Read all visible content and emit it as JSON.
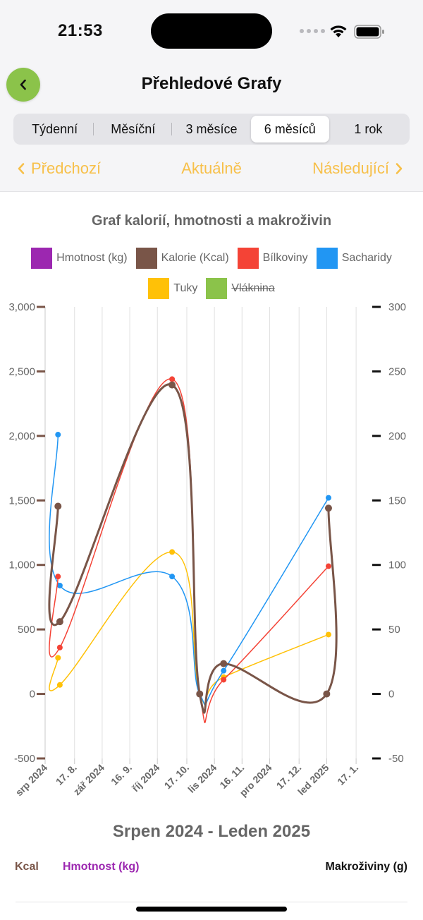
{
  "status_bar": {
    "time": "21:53"
  },
  "header": {
    "title": "Přehledové Grafy"
  },
  "tabs": [
    {
      "label": "Týdenní",
      "active": false
    },
    {
      "label": "Měsíční",
      "active": false
    },
    {
      "label": "3 měsíce",
      "active": false
    },
    {
      "label": "6 měsíců",
      "active": true
    },
    {
      "label": "1 rok",
      "active": false
    }
  ],
  "period_nav": {
    "prev": "Předchozí",
    "current": "Aktuálně",
    "next": "Následující"
  },
  "colors": {
    "accent_green": "#8bc34a",
    "accent_yellow": "#f7c04a",
    "weight": "#9c27b0",
    "kcal": "#795548",
    "protein": "#f44336",
    "carbs": "#2196f3",
    "fat": "#ffc107",
    "fiber": "#8bc34a"
  },
  "chart_data": {
    "type": "line",
    "title": "Graf kalorií, hmotnosti a makroživin",
    "legend_placement": "top",
    "grid": true,
    "x_type": "date",
    "xlim": [
      "2024-08-01",
      "2025-01-25"
    ],
    "x_tick_labels": [
      {
        "date": "2024-08-01",
        "label": "srp 2024"
      },
      {
        "date": "2024-08-17",
        "label": "17. 8."
      },
      {
        "date": "2024-09-01",
        "label": "zář 2024"
      },
      {
        "date": "2024-09-16",
        "label": "16. 9."
      },
      {
        "date": "2024-10-01",
        "label": "říj 2024"
      },
      {
        "date": "2024-10-17",
        "label": "17. 10."
      },
      {
        "date": "2024-11-01",
        "label": "lis 2024"
      },
      {
        "date": "2024-11-16",
        "label": "16. 11."
      },
      {
        "date": "2024-12-01",
        "label": "pro 2024"
      },
      {
        "date": "2024-12-17",
        "label": "17. 12."
      },
      {
        "date": "2025-01-01",
        "label": "led 2025"
      },
      {
        "date": "2025-01-17",
        "label": "17. 1."
      }
    ],
    "y_left": {
      "ylim": [
        -500,
        3000
      ],
      "ticks": [
        "-500",
        "0",
        "500",
        "1,000",
        "1,500",
        "2,000",
        "2,500",
        "3,000"
      ]
    },
    "y_right": {
      "ylim": [
        -50,
        300
      ],
      "ticks": [
        "-50",
        "0",
        "50",
        "100",
        "150",
        "200",
        "250",
        "300"
      ]
    },
    "series": [
      {
        "name": "Hmotnost (kg)",
        "axis": "left",
        "visible": true,
        "points": []
      },
      {
        "name": "Kalorie (Kcal)",
        "axis": "left",
        "visible": true,
        "points": [
          [
            "2024-08-08",
            1455
          ],
          [
            "2024-08-09",
            560
          ],
          [
            "2024-10-09",
            2395
          ],
          [
            "2024-10-24",
            0
          ],
          [
            "2024-11-06",
            235
          ],
          [
            "2025-01-01",
            0
          ],
          [
            "2025-01-02",
            1440
          ]
        ]
      },
      {
        "name": "Bílkoviny",
        "axis": "right",
        "visible": true,
        "points": [
          [
            "2024-08-08",
            91
          ],
          [
            "2024-08-09",
            36
          ],
          [
            "2024-10-09",
            244
          ],
          [
            "2024-10-24",
            0
          ],
          [
            "2024-11-06",
            11
          ],
          [
            "2025-01-02",
            99
          ]
        ]
      },
      {
        "name": "Sacharidy",
        "axis": "right",
        "visible": true,
        "points": [
          [
            "2024-08-08",
            201
          ],
          [
            "2024-08-09",
            84
          ],
          [
            "2024-10-09",
            91
          ],
          [
            "2024-10-24",
            0
          ],
          [
            "2024-11-06",
            18
          ],
          [
            "2025-01-02",
            152
          ]
        ]
      },
      {
        "name": "Tuky",
        "axis": "right",
        "visible": true,
        "points": [
          [
            "2024-08-08",
            28
          ],
          [
            "2024-08-09",
            7
          ],
          [
            "2024-10-09",
            110
          ],
          [
            "2024-10-24",
            0
          ],
          [
            "2024-11-06",
            13
          ],
          [
            "2025-01-02",
            46
          ]
        ]
      },
      {
        "name": "Vláknina",
        "axis": "right",
        "visible": false,
        "points": []
      }
    ]
  },
  "range_title": "Srpen 2024 - Leden 2025",
  "bottom_labels": {
    "kcal": "Kcal",
    "weight": "Hmotnost (kg)",
    "macros": "Makroživiny (g)"
  }
}
